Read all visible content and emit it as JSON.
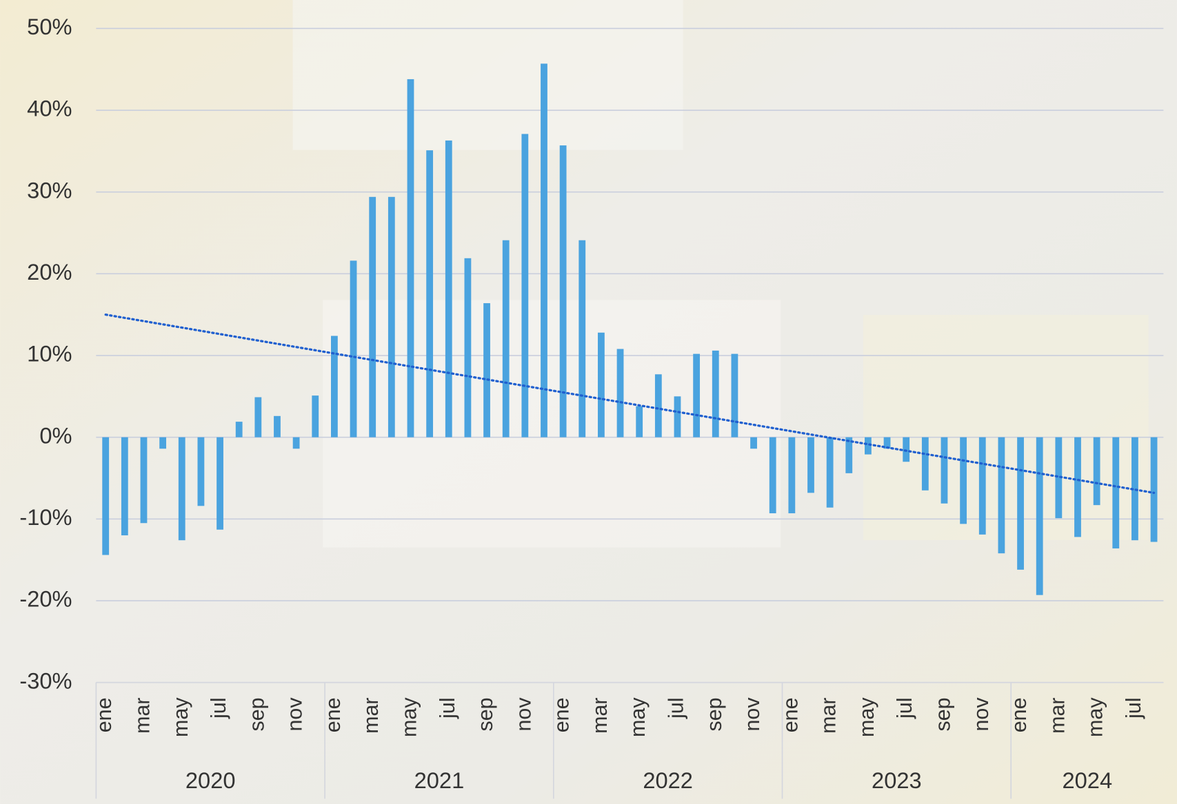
{
  "chart_data": {
    "type": "bar",
    "categories": [
      "ene",
      null,
      "mar",
      null,
      "may",
      null,
      "jul",
      null,
      "sep",
      null,
      "nov",
      null,
      "ene",
      null,
      "mar",
      null,
      "may",
      null,
      "jul",
      null,
      "sep",
      null,
      "nov",
      null,
      "ene",
      null,
      "mar",
      null,
      "may",
      null,
      "jul",
      null,
      "sep",
      null,
      "nov",
      null,
      "ene",
      null,
      "mar",
      null,
      "may",
      null,
      "jul",
      null,
      "sep",
      null,
      "nov",
      null,
      "ene",
      null,
      "mar",
      null,
      "may",
      null,
      "jul",
      null
    ],
    "groups": [
      "2020",
      "2021",
      "2022",
      "2023",
      "2024"
    ],
    "values": [
      -14.4,
      -12.0,
      -10.5,
      -1.4,
      -12.6,
      -8.4,
      -11.3,
      1.9,
      4.9,
      2.6,
      -1.4,
      5.1,
      12.4,
      21.6,
      29.4,
      29.4,
      43.8,
      35.1,
      36.3,
      21.9,
      16.4,
      24.1,
      37.1,
      45.7,
      35.7,
      24.1,
      12.8,
      10.8,
      3.8,
      7.7,
      5.0,
      10.2,
      10.6,
      10.2,
      -1.4,
      -9.3,
      -9.3,
      -6.8,
      -8.6,
      -4.4,
      -2.1,
      -1.4,
      -3.0,
      -6.5,
      -8.1,
      -10.6,
      -11.9,
      -14.2,
      -16.2,
      -19.3,
      -9.9,
      -12.2,
      -8.3,
      -13.6,
      -12.6,
      -12.8
    ],
    "color": "#4aa3df",
    "trendline": {
      "start": 15.0,
      "end": -6.8,
      "color": "#1f5fcf"
    },
    "ylim": [
      -30,
      50
    ],
    "yticks": [
      {
        "value": -30,
        "label": "-30%"
      },
      {
        "value": -20,
        "label": "-20%"
      },
      {
        "value": -10,
        "label": "-10%"
      },
      {
        "value": 0,
        "label": "0%"
      },
      {
        "value": 10,
        "label": "10%"
      },
      {
        "value": 20,
        "label": "20%"
      },
      {
        "value": 30,
        "label": "30%"
      },
      {
        "value": 40,
        "label": "40%"
      },
      {
        "value": 50,
        "label": "50%"
      }
    ],
    "grid": true
  }
}
